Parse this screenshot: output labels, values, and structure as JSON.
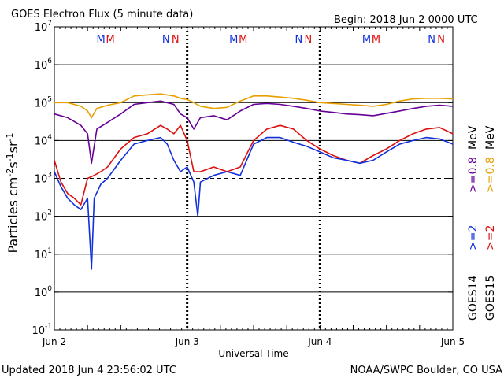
{
  "header": {
    "title": "GOES Electron Flux (5 minute data)",
    "begin": "Begin: 2018 Jun 2 0000 UTC"
  },
  "footer": {
    "updated": "Updated 2018 Jun  4 23:56:02 UTC",
    "credit": "NOAA/SWPC Boulder, CO USA"
  },
  "colors": {
    "goes14_2mev": "#1030dd",
    "goes15_2mev": "#dd1010",
    "goes14_08mev": "#660099",
    "goes15_08mev": "#e8a000",
    "marker_M_blue": "#1030dd",
    "marker_M_red": "#dd1010"
  },
  "markers": [
    {
      "day": 0.38,
      "letters": [
        "M",
        "M"
      ]
    },
    {
      "day": 0.87,
      "letters": [
        "N",
        "N"
      ]
    },
    {
      "day": 1.38,
      "letters": [
        "M",
        "M"
      ]
    },
    {
      "day": 1.87,
      "letters": [
        "N",
        "N"
      ]
    },
    {
      "day": 2.38,
      "letters": [
        "M",
        "M"
      ]
    },
    {
      "day": 2.87,
      "letters": [
        "N",
        "N"
      ]
    }
  ],
  "legend": {
    "goes14": "GOES14",
    "goes15": "GOES15",
    "ge2": ">=2",
    "ge08": ">=0.8",
    "mev": "MeV"
  },
  "chart_data": {
    "type": "line",
    "title": "GOES Electron Flux (5 minute data)",
    "xlabel": "Universal Time",
    "ylabel": "Particles cm-2 s-1 sr-1",
    "yscale": "log",
    "ylim": [
      0.1,
      10000000
    ],
    "xlim": [
      0,
      3
    ],
    "x_tick_labels": [
      "Jun 2",
      "Jun 3",
      "Jun 4",
      "Jun 5"
    ],
    "y_tick_labels": [
      "10^-1",
      "10^0",
      "10^1",
      "10^2",
      "10^3",
      "10^4",
      "10^5",
      "10^6",
      "10^7"
    ],
    "series": [
      {
        "name": "GOES15 >=0.8 MeV",
        "x": [
          0,
          0.1,
          0.2,
          0.25,
          0.28,
          0.32,
          0.4,
          0.5,
          0.6,
          0.7,
          0.8,
          0.9,
          0.95,
          1.0,
          1.05,
          1.1,
          1.2,
          1.3,
          1.4,
          1.5,
          1.6,
          1.7,
          1.8,
          1.9,
          2.0,
          2.1,
          2.2,
          2.3,
          2.4,
          2.5,
          2.6,
          2.7,
          2.8,
          2.9,
          3.0
        ],
        "y": [
          100000,
          100000,
          80000,
          60000,
          40000,
          70000,
          85000,
          100000,
          150000,
          160000,
          170000,
          150000,
          130000,
          120000,
          100000,
          80000,
          70000,
          75000,
          110000,
          150000,
          150000,
          140000,
          130000,
          115000,
          100000,
          95000,
          90000,
          85000,
          80000,
          90000,
          110000,
          125000,
          130000,
          130000,
          125000
        ]
      },
      {
        "name": "GOES14 >=0.8 MeV",
        "x": [
          0,
          0.1,
          0.2,
          0.25,
          0.28,
          0.32,
          0.4,
          0.5,
          0.6,
          0.7,
          0.8,
          0.9,
          0.95,
          1.0,
          1.05,
          1.1,
          1.2,
          1.3,
          1.4,
          1.5,
          1.6,
          1.7,
          1.8,
          1.9,
          2.0,
          2.1,
          2.2,
          2.3,
          2.4,
          2.5,
          2.6,
          2.7,
          2.8,
          2.9,
          3.0
        ],
        "y": [
          50000,
          40000,
          25000,
          15000,
          2500,
          20000,
          30000,
          50000,
          90000,
          100000,
          110000,
          90000,
          50000,
          40000,
          20000,
          40000,
          45000,
          35000,
          60000,
          90000,
          95000,
          90000,
          80000,
          70000,
          60000,
          55000,
          50000,
          48000,
          45000,
          52000,
          60000,
          70000,
          80000,
          85000,
          80000
        ]
      },
      {
        "name": "GOES15 >=2 MeV",
        "x": [
          0,
          0.05,
          0.1,
          0.15,
          0.2,
          0.25,
          0.3,
          0.35,
          0.4,
          0.5,
          0.6,
          0.7,
          0.8,
          0.85,
          0.9,
          0.95,
          1.0,
          1.05,
          1.1,
          1.2,
          1.3,
          1.4,
          1.5,
          1.6,
          1.7,
          1.8,
          1.9,
          2.0,
          2.1,
          2.2,
          2.3,
          2.4,
          2.5,
          2.6,
          2.7,
          2.8,
          2.9,
          3.0
        ],
        "y": [
          3000,
          800,
          400,
          300,
          200,
          1000,
          1200,
          1500,
          2000,
          6000,
          12000,
          15000,
          25000,
          20000,
          15000,
          25000,
          10000,
          1500,
          1500,
          2000,
          1500,
          2000,
          10000,
          20000,
          25000,
          20000,
          10000,
          6000,
          4000,
          3000,
          2500,
          4000,
          6000,
          10000,
          15000,
          20000,
          22000,
          15000
        ]
      },
      {
        "name": "GOES14 >=2 MeV",
        "x": [
          0,
          0.05,
          0.1,
          0.15,
          0.2,
          0.25,
          0.28,
          0.3,
          0.35,
          0.4,
          0.5,
          0.6,
          0.7,
          0.8,
          0.85,
          0.9,
          0.95,
          1.0,
          1.05,
          1.08,
          1.1,
          1.2,
          1.3,
          1.4,
          1.5,
          1.6,
          1.7,
          1.8,
          1.9,
          2.0,
          2.1,
          2.2,
          2.3,
          2.4,
          2.5,
          2.6,
          2.7,
          2.8,
          2.9,
          3.0
        ],
        "y": [
          1500,
          600,
          300,
          200,
          150,
          300,
          4,
          300,
          700,
          1000,
          3000,
          8000,
          10000,
          12000,
          8000,
          3000,
          1500,
          2000,
          800,
          100,
          800,
          1200,
          1500,
          1200,
          8000,
          12000,
          12000,
          9000,
          7000,
          5000,
          3500,
          3000,
          2500,
          3000,
          5000,
          8000,
          10000,
          12000,
          11000,
          8000
        ]
      }
    ]
  }
}
